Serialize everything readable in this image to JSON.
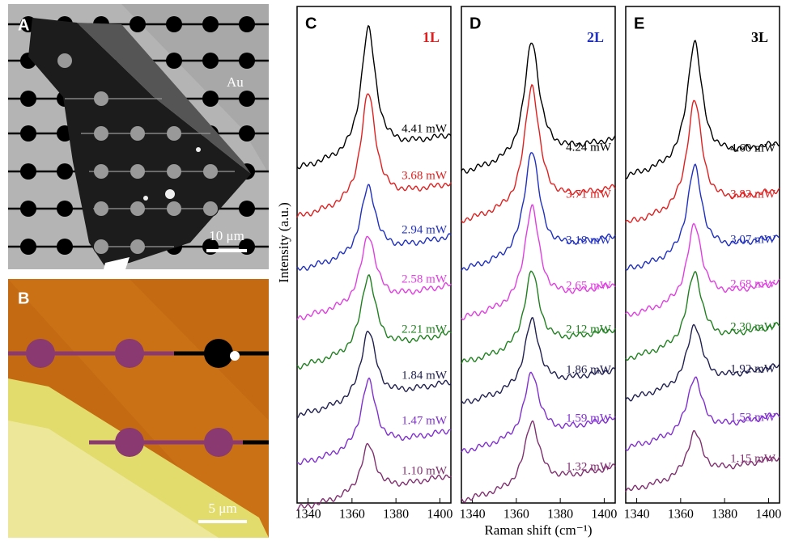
{
  "panels": {
    "A": {
      "label": "A",
      "material_label": "Au",
      "scale_bar": "10 μm"
    },
    "B": {
      "label": "B",
      "scale_bar": "5 μm"
    },
    "spectra": [
      {
        "label": "C",
        "layers": "1L",
        "layers_color": "#e02020",
        "powers": [
          "4.41 mW",
          "3.68 mW",
          "2.94 mW",
          "2.58 mW",
          "2.21 mW",
          "1.84 mW",
          "1.47 mW",
          "1.10 mW"
        ]
      },
      {
        "label": "D",
        "layers": "2L",
        "layers_color": "#2030c0",
        "powers": [
          "4.24 mW",
          "3.71 mW",
          "3.18 mW",
          "2.65 mW",
          "2.12 mW",
          "1.86 mW",
          "1.59 mW",
          "1.32 mW"
        ]
      },
      {
        "label": "E",
        "layers": "3L",
        "layers_color": "#000000",
        "powers": [
          "4.60 mW",
          "3.83 mW",
          "3.07 mW",
          "2.68 mW",
          "2.30 mW",
          "1.92 mW",
          "1.53 mW",
          "1.15 mW"
        ]
      }
    ],
    "trace_colors": [
      "#000000",
      "#e02020",
      "#2030c0",
      "#e040e0",
      "#208020",
      "#202050",
      "#8030d0",
      "#803070"
    ],
    "xlim": [
      1335,
      1405
    ],
    "xticks": [
      1340,
      1360,
      1380,
      1400
    ],
    "y_label": "Intensity (a.u.)",
    "x_label": "Raman shift (cm⁻¹)"
  }
}
